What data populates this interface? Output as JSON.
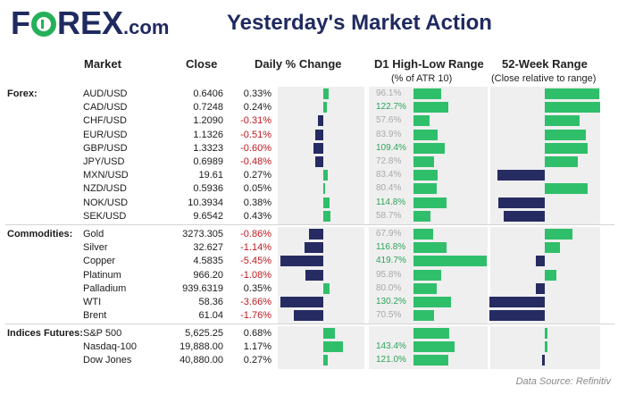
{
  "header": {
    "logo_prefix": "F",
    "logo_suffix": "REX",
    "logo_domain": ".com",
    "title": "Yesterday's Market Action"
  },
  "columns": {
    "market": "Market",
    "close": "Close",
    "daily": "Daily % Change",
    "d1": "D1 High-Low Range",
    "d1_sub": "(% of ATR 10)",
    "week52": "52-Week Range",
    "week52_sub": "(Close relative to range)"
  },
  "source": "Data Source: Refinitiv",
  "colors": {
    "positive": "#2fbf6a",
    "negative": "#262b62",
    "brand": "#1f2a60",
    "neg_text": "#c0181e"
  },
  "chart_data": {
    "type": "table",
    "groups": [
      {
        "label": "Forex:",
        "rows": [
          {
            "market": "AUD/USD",
            "close": "0.6406",
            "change": "0.33%",
            "change_value": 0.33,
            "d1": "96.1%",
            "d1_value": 96.1,
            "week52_value": 0.55
          },
          {
            "market": "CAD/USD",
            "close": "0.7248",
            "change": "0.24%",
            "change_value": 0.24,
            "d1": "122.7%",
            "d1_value": 122.7,
            "week52_value": 0.58
          },
          {
            "market": "CHF/USD",
            "close": "1.2090",
            "change": "-0.31%",
            "change_value": -0.31,
            "d1": "57.6%",
            "d1_value": 57.6,
            "week52_value": 0.35
          },
          {
            "market": "EUR/USD",
            "close": "1.1326",
            "change": "-0.51%",
            "change_value": -0.51,
            "d1": "83.9%",
            "d1_value": 83.9,
            "week52_value": 0.42
          },
          {
            "market": "GBP/USD",
            "close": "1.3323",
            "change": "-0.60%",
            "change_value": -0.6,
            "d1": "109.4%",
            "d1_value": 109.4,
            "week52_value": 0.44
          },
          {
            "market": "JPY/USD",
            "close": "0.6989",
            "change": "-0.48%",
            "change_value": -0.48,
            "d1": "72.8%",
            "d1_value": 72.8,
            "week52_value": 0.34
          },
          {
            "market": "MXN/USD",
            "close": "19.61",
            "change": "0.27%",
            "change_value": 0.27,
            "d1": "83.4%",
            "d1_value": 83.4,
            "week52_value": -0.48
          },
          {
            "market": "NZD/USD",
            "close": "0.5936",
            "change": "0.05%",
            "change_value": 0.05,
            "d1": "80.4%",
            "d1_value": 80.4,
            "week52_value": 0.44
          },
          {
            "market": "NOK/USD",
            "close": "10.3934",
            "change": "0.38%",
            "change_value": 0.38,
            "d1": "114.8%",
            "d1_value": 114.8,
            "week52_value": -0.47
          },
          {
            "market": "SEK/USD",
            "close": "9.6542",
            "change": "0.43%",
            "change_value": 0.43,
            "d1": "58.7%",
            "d1_value": 58.7,
            "week52_value": -0.42
          }
        ]
      },
      {
        "label": "Commodities:",
        "rows": [
          {
            "market": "Gold",
            "close": "3273.305",
            "change": "-0.86%",
            "change_value": -0.86,
            "d1": "67.9%",
            "d1_value": 67.9,
            "week52_value": 0.28
          },
          {
            "market": "Silver",
            "close": "32.627",
            "change": "-1.14%",
            "change_value": -1.14,
            "d1": "116.8%",
            "d1_value": 116.8,
            "week52_value": 0.15
          },
          {
            "market": "Copper",
            "close": "4.5835",
            "change": "-5.45%",
            "change_value": -5.45,
            "d1": "419.7%",
            "d1_value": 419.7,
            "week52_value": -0.09
          },
          {
            "market": "Platinum",
            "close": "966.20",
            "change": "-1.08%",
            "change_value": -1.08,
            "d1": "95.8%",
            "d1_value": 95.8,
            "week52_value": 0.12
          },
          {
            "market": "Palladium",
            "close": "939.6319",
            "change": "0.35%",
            "change_value": 0.35,
            "d1": "80.0%",
            "d1_value": 80.0,
            "week52_value": -0.09
          },
          {
            "market": "WTI",
            "close": "58.36",
            "change": "-3.66%",
            "change_value": -3.66,
            "d1": "130.2%",
            "d1_value": 130.2,
            "week52_value": -0.57
          },
          {
            "market": "Brent",
            "close": "61.04",
            "change": "-1.76%",
            "change_value": -1.76,
            "d1": "70.5%",
            "d1_value": 70.5,
            "week52_value": -0.57
          }
        ]
      },
      {
        "label": "Indices Futures:",
        "rows": [
          {
            "market": "S&P 500",
            "close": "5,625.25",
            "change": "0.68%",
            "change_value": 0.68,
            "d1": "",
            "d1_value": 125,
            "week52_value": 0.02
          },
          {
            "market": "Nasdaq-100",
            "close": "19,888.00",
            "change": "1.17%",
            "change_value": 1.17,
            "d1": "143.4%",
            "d1_value": 143.4,
            "week52_value": 0.02
          },
          {
            "market": "Dow Jones",
            "close": "40,880.00",
            "change": "0.27%",
            "change_value": 0.27,
            "d1": "121.0%",
            "d1_value": 121.0,
            "week52_value": -0.02
          }
        ]
      }
    ]
  }
}
